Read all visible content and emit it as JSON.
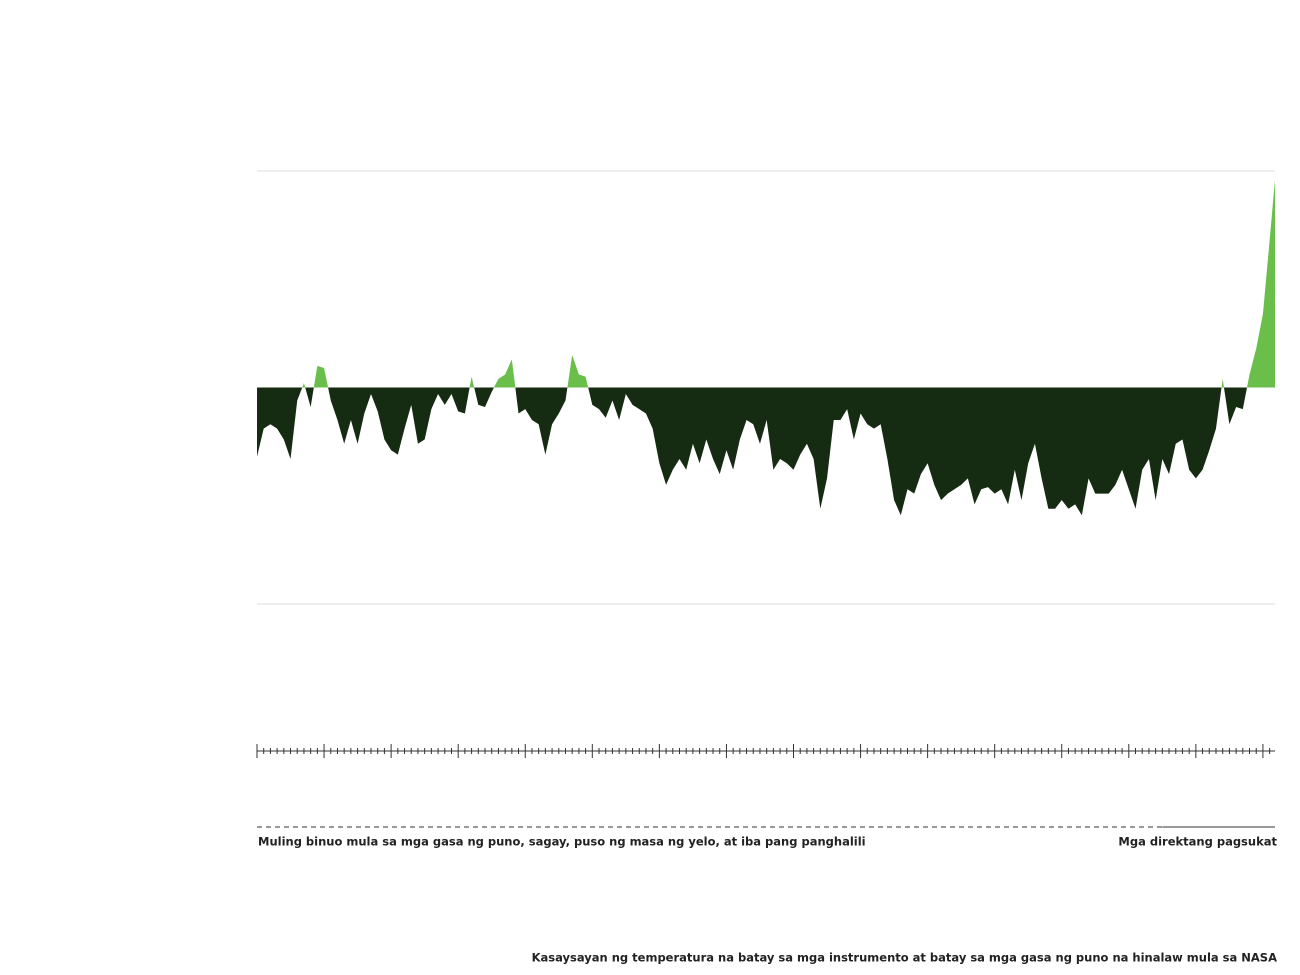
{
  "chart_data": {
    "type": "area",
    "caption": "Kasaysayan ng temperatura na batay sa mga instrumento at batay sa mga gasa ng puno na hinalaw mula sa NASA",
    "x": [
      500,
      510,
      520,
      530,
      540,
      550,
      560,
      570,
      580,
      590,
      600,
      610,
      620,
      630,
      640,
      650,
      660,
      670,
      680,
      690,
      700,
      710,
      720,
      730,
      740,
      750,
      760,
      770,
      780,
      790,
      800,
      810,
      820,
      830,
      840,
      850,
      860,
      870,
      880,
      890,
      900,
      910,
      920,
      930,
      940,
      950,
      960,
      970,
      980,
      990,
      1000,
      1010,
      1020,
      1030,
      1040,
      1050,
      1060,
      1070,
      1080,
      1090,
      1100,
      1110,
      1120,
      1130,
      1140,
      1150,
      1160,
      1170,
      1180,
      1190,
      1200,
      1210,
      1220,
      1230,
      1240,
      1250,
      1260,
      1270,
      1280,
      1290,
      1300,
      1310,
      1320,
      1330,
      1340,
      1350,
      1360,
      1370,
      1380,
      1390,
      1400,
      1410,
      1420,
      1430,
      1440,
      1450,
      1460,
      1470,
      1480,
      1490,
      1500,
      1510,
      1520,
      1530,
      1540,
      1550,
      1560,
      1570,
      1580,
      1590,
      1600,
      1610,
      1620,
      1630,
      1640,
      1650,
      1660,
      1670,
      1680,
      1690,
      1700,
      1710,
      1720,
      1730,
      1740,
      1750,
      1760,
      1770,
      1780,
      1790,
      1800,
      1810,
      1820,
      1830,
      1840,
      1850,
      1860,
      1870,
      1880,
      1890,
      1900,
      1910,
      1920,
      1930,
      1940,
      1950,
      1960,
      1970,
      1980,
      1990,
      2000,
      2010,
      2018
    ],
    "values": [
      -0.32,
      -0.19,
      -0.17,
      -0.19,
      -0.24,
      -0.33,
      -0.06,
      0.02,
      -0.09,
      0.1,
      0.09,
      -0.06,
      -0.15,
      -0.26,
      -0.15,
      -0.26,
      -0.12,
      -0.03,
      -0.11,
      -0.24,
      -0.29,
      -0.31,
      -0.19,
      -0.08,
      -0.26,
      -0.24,
      -0.1,
      -0.03,
      -0.08,
      -0.03,
      -0.11,
      -0.12,
      0.05,
      -0.08,
      -0.09,
      -0.02,
      0.04,
      0.06,
      0.13,
      -0.12,
      -0.1,
      -0.15,
      -0.17,
      -0.31,
      -0.17,
      -0.12,
      -0.06,
      0.15,
      0.06,
      0.05,
      -0.08,
      -0.1,
      -0.14,
      -0.06,
      -0.15,
      -0.03,
      -0.08,
      -0.1,
      -0.12,
      -0.19,
      -0.35,
      -0.45,
      -0.38,
      -0.33,
      -0.38,
      -0.26,
      -0.35,
      -0.24,
      -0.33,
      -0.4,
      -0.29,
      -0.38,
      -0.24,
      -0.15,
      -0.17,
      -0.26,
      -0.15,
      -0.38,
      -0.33,
      -0.35,
      -0.38,
      -0.31,
      -0.26,
      -0.33,
      -0.56,
      -0.42,
      -0.15,
      -0.15,
      -0.1,
      -0.24,
      -0.12,
      -0.17,
      -0.19,
      -0.17,
      -0.33,
      -0.52,
      -0.59,
      -0.47,
      -0.49,
      -0.4,
      -0.35,
      -0.45,
      -0.52,
      -0.49,
      -0.47,
      -0.45,
      -0.42,
      -0.54,
      -0.47,
      -0.46,
      -0.49,
      -0.47,
      -0.54,
      -0.38,
      -0.52,
      -0.35,
      -0.26,
      -0.42,
      -0.56,
      -0.56,
      -0.52,
      -0.56,
      -0.54,
      -0.59,
      -0.42,
      -0.49,
      -0.49,
      -0.49,
      -0.45,
      -0.38,
      -0.47,
      -0.56,
      -0.38,
      -0.33,
      -0.52,
      -0.33,
      -0.4,
      -0.26,
      -0.24,
      -0.38,
      -0.42,
      -0.38,
      -0.29,
      -0.19,
      0.04,
      -0.17,
      -0.09,
      -0.1,
      0.06,
      0.18,
      0.34,
      0.68,
      0.96
    ],
    "color_above": "#6abf4b",
    "color_below": "#152b12",
    "xlim": [
      500,
      2018
    ],
    "xticks": [
      500,
      510,
      520,
      530,
      540,
      550,
      560,
      570,
      580,
      590,
      600,
      610,
      620,
      630,
      640,
      650,
      660,
      670,
      680,
      690,
      700,
      710,
      720,
      730,
      740,
      750,
      760,
      770,
      780,
      790,
      800,
      810,
      820,
      830,
      840,
      850,
      860,
      870,
      880,
      890,
      900,
      910,
      920,
      930,
      940,
      950,
      960,
      970,
      980,
      990,
      1000,
      1010,
      1020,
      1030,
      1040,
      1050,
      1060,
      1070,
      1080,
      1090,
      1100,
      1110,
      1120,
      1130,
      1140,
      1150,
      1160,
      1170,
      1180,
      1190,
      1200,
      1210,
      1220,
      1230,
      1240,
      1250,
      1260,
      1270,
      1280,
      1290,
      1300,
      1310,
      1320,
      1330,
      1340,
      1350,
      1360,
      1370,
      1380,
      1390,
      1400,
      1410,
      1420,
      1430,
      1440,
      1450,
      1460,
      1470,
      1480,
      1490,
      1500,
      1510,
      1520,
      1530,
      1540,
      1550,
      1560,
      1570,
      1580,
      1590,
      1600,
      1610,
      1620,
      1630,
      1640,
      1650,
      1660,
      1670,
      1680,
      1690,
      1700,
      1710,
      1720,
      1730,
      1740,
      1750,
      1760,
      1770,
      1780,
      1790,
      1800,
      1810,
      1820,
      1830,
      1840,
      1850,
      1860,
      1870,
      1880,
      1890,
      1900,
      1910,
      1920,
      1930,
      1940,
      1950,
      1960,
      1970,
      1980,
      1990,
      2000,
      2010
    ],
    "xmajor_step": 100,
    "ylim": [
      -1,
      1
    ],
    "yticks": [
      -1,
      1
    ],
    "grid": true,
    "periods": [
      {
        "label": "Muling binuo mula sa mga gasa ng puno, sagay, puso ng masa ng yelo, at iba pang panghalili",
        "range": [
          500,
          1850
        ],
        "style": "dashed"
      },
      {
        "label": "Mga direktang pagsukat",
        "range": [
          1850,
          2018
        ],
        "style": "solid"
      }
    ]
  }
}
